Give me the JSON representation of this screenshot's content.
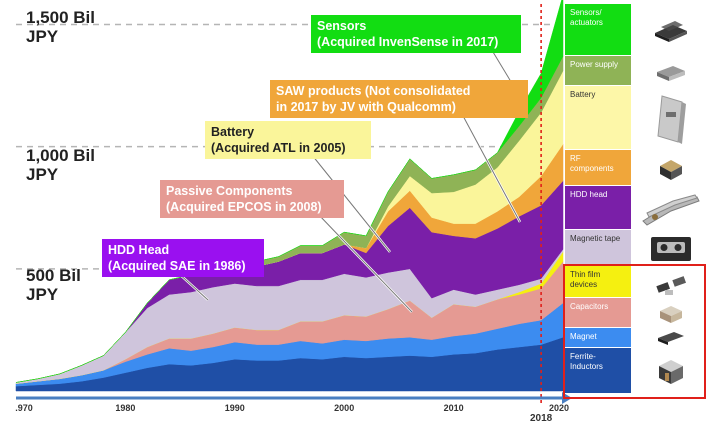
{
  "chart_data": {
    "type": "area",
    "title": "",
    "xlabel": "",
    "ylabel": "",
    "x": [
      1970,
      1972,
      1974,
      1976,
      1978,
      1980,
      1982,
      1984,
      1986,
      1988,
      1990,
      1992,
      1994,
      1996,
      1998,
      2000,
      2002,
      2004,
      2006,
      2008,
      2010,
      2012,
      2014,
      2016,
      2018,
      2020
    ],
    "xlim": [
      1970,
      2020
    ],
    "ylim": [
      0,
      1600
    ],
    "x_ticks": [
      ".970",
      "1980",
      "1990",
      "2000",
      "2010",
      "2020"
    ],
    "y_labels": [
      {
        "value": 1500,
        "line1": "1,500 Bil",
        "line2": "JPY"
      },
      {
        "value": 1000,
        "line1": "1,000 Bil",
        "line2": "JPY"
      },
      {
        "value": 500,
        "line1": "500 Bil",
        "line2": "JPY"
      }
    ],
    "highlight_year": {
      "x": 2018,
      "label": "2018"
    },
    "series": [
      {
        "name": "Ferrite-Inductors",
        "color": "#1f4fa6",
        "values": [
          20,
          25,
          30,
          40,
          55,
          75,
          95,
          110,
          105,
          115,
          130,
          125,
          125,
          135,
          130,
          140,
          135,
          140,
          145,
          140,
          150,
          155,
          170,
          180,
          190,
          220
        ]
      },
      {
        "name": "Magnet",
        "color": "#3c8cf0",
        "values": [
          10,
          15,
          20,
          25,
          30,
          45,
          55,
          65,
          60,
          65,
          70,
          65,
          65,
          70,
          65,
          70,
          70,
          75,
          75,
          70,
          75,
          80,
          85,
          95,
          100,
          140
        ]
      },
      {
        "name": "Capacitors",
        "color": "#e59a93",
        "values": [
          0,
          0,
          0,
          0,
          0,
          10,
          30,
          40,
          50,
          55,
          60,
          60,
          60,
          80,
          90,
          100,
          100,
          120,
          150,
          90,
          130,
          110,
          120,
          120,
          130,
          170
        ]
      },
      {
        "name": "Thin film devices",
        "color": "#f5f010",
        "values": [
          0,
          0,
          0,
          0,
          0,
          0,
          0,
          0,
          0,
          0,
          0,
          0,
          0,
          0,
          0,
          0,
          0,
          0,
          0,
          0,
          0,
          0,
          0,
          10,
          20,
          40
        ]
      },
      {
        "name": "Magnetic tape",
        "color": "#cfc5dc",
        "values": [
          5,
          10,
          20,
          40,
          60,
          110,
          160,
          180,
          190,
          190,
          180,
          180,
          180,
          170,
          170,
          170,
          160,
          150,
          130,
          80,
          60,
          50,
          40,
          30,
          20,
          10
        ]
      },
      {
        "name": "HDD head",
        "color": "#7a1fa8",
        "values": [
          0,
          0,
          0,
          0,
          0,
          0,
          20,
          60,
          70,
          60,
          100,
          80,
          100,
          110,
          110,
          120,
          100,
          190,
          250,
          270,
          220,
          230,
          250,
          280,
          300,
          280
        ]
      },
      {
        "name": "RF components",
        "color": "#f0a63a",
        "values": [
          0,
          0,
          0,
          0,
          0,
          0,
          0,
          0,
          0,
          0,
          0,
          0,
          0,
          0,
          0,
          0,
          20,
          60,
          70,
          60,
          50,
          60,
          70,
          80,
          120,
          150
        ]
      },
      {
        "name": "Battery",
        "color": "#faf59a",
        "values": [
          0,
          0,
          0,
          0,
          0,
          0,
          0,
          0,
          0,
          0,
          0,
          0,
          0,
          0,
          0,
          0,
          0,
          20,
          60,
          100,
          130,
          160,
          180,
          230,
          260,
          300
        ]
      },
      {
        "name": "Power supply",
        "color": "#8fb356",
        "values": [
          0,
          0,
          0,
          0,
          0,
          0,
          0,
          0,
          0,
          10,
          20,
          20,
          20,
          30,
          30,
          50,
          50,
          60,
          70,
          60,
          70,
          60,
          60,
          60,
          60,
          60
        ]
      },
      {
        "name": "Sensors/actuators",
        "color": "#12dd12",
        "values": [
          0,
          0,
          0,
          0,
          0,
          0,
          0,
          0,
          0,
          0,
          0,
          0,
          0,
          0,
          0,
          0,
          0,
          0,
          0,
          0,
          0,
          0,
          0,
          60,
          100,
          250
        ]
      }
    ],
    "annotations": [
      {
        "line1": "Sensors",
        "line2": "(Acquired InvenSense in 2017)",
        "color": "#12dd12"
      },
      {
        "line1": "SAW products (Not consolidated",
        "line2": "in 2017 by JV with Qualcomm)",
        "color": "#f0a63a"
      },
      {
        "line1": "Battery",
        "line2": "(Acquired ATL in 2005)",
        "color": "#faf59a"
      },
      {
        "line1": "Passive Components",
        "line2": "(Acquired EPCOS in 2008)",
        "color": "#e59a93"
      },
      {
        "line1": "HDD Head",
        "line2": "(Acquired SAE in 1986)",
        "color": "#9a10f0"
      }
    ],
    "legend": [
      {
        "label": "Sensors/ actuators",
        "color": "#12dd12",
        "text_color": "#ffffff",
        "icon": "chip-icon"
      },
      {
        "label": "Power supply",
        "color": "#8fb356",
        "text_color": "#ffffff",
        "icon": "power-module-icon"
      },
      {
        "label": "Battery",
        "color": "#fdf7a8",
        "text_color": "#333333",
        "icon": "battery-pack-icon"
      },
      {
        "label": "RF components",
        "color": "#f0a63a",
        "text_color": "#ffffff",
        "icon": "rf-module-icon"
      },
      {
        "label": "HDD head",
        "color": "#7a1fa8",
        "text_color": "#ffffff",
        "icon": "hdd-head-icon"
      },
      {
        "label": "Magnetic tape",
        "color": "#cfc5dc",
        "text_color": "#333333",
        "icon": "tape-cassette-icon"
      },
      {
        "label": "Thin film devices",
        "color": "#f5f010",
        "text_color": "#333333",
        "icon": "thin-film-icon"
      },
      {
        "label": "Capacitors",
        "color": "#e59a93",
        "text_color": "#ffffff",
        "icon": "capacitor-icon"
      },
      {
        "label": "Magnet",
        "color": "#3c8cf0",
        "text_color": "#ffffff",
        "icon": "magnet-icon"
      },
      {
        "label": "Ferrite- Inductors",
        "color": "#1f4fa6",
        "text_color": "#ffffff",
        "icon": "inductor-icon"
      }
    ]
  }
}
